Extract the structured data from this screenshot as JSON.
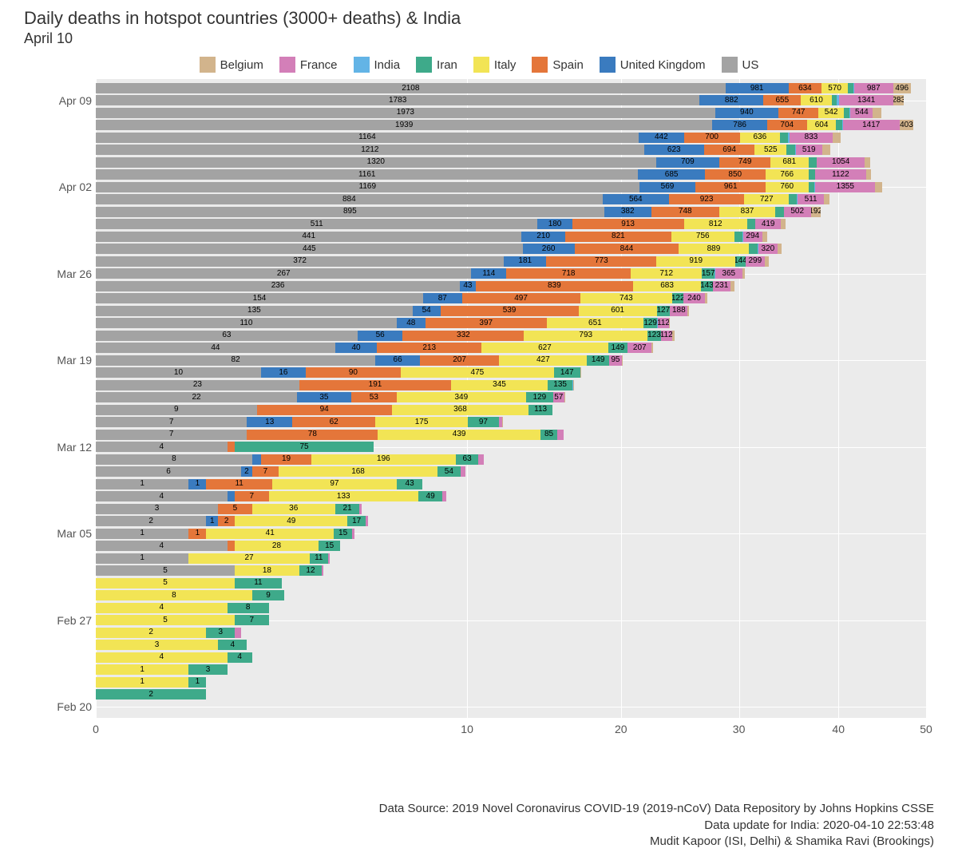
{
  "title": "Daily deaths in hotspot countries (3000+ deaths) & India",
  "subtitle": "April 10",
  "caption_line1": "Data Source: 2019 Novel Coronavirus COVID-19 (2019-nCoV) Data Repository by Johns Hopkins CSSE",
  "caption_line2": "Data update for India: 2020-04-10 22:53:48",
  "caption_line3": "Mudit Kapoor (ISI, Delhi) & Shamika Ravi (Brookings)",
  "chart": {
    "type": "stacked-horizontal-bar",
    "background_color": "#ebebeb",
    "grid_color": "#ffffff",
    "text_color": "#333333",
    "title_fontsize": 22,
    "label_fontsize": 14,
    "seg_label_fontsize": 10,
    "stack_order": [
      "US",
      "United Kingdom",
      "Spain",
      "Italy",
      "Iran",
      "India",
      "France",
      "Belgium"
    ],
    "series_colors": {
      "Belgium": "#d2b48c",
      "France": "#d37fb8",
      "India": "#63b4e6",
      "Iran": "#3eaa8a",
      "Italy": "#f2e455",
      "Spain": "#e4763a",
      "United Kingdom": "#3a7bbf",
      "US": "#a3a3a3"
    },
    "x": {
      "label": null,
      "ticks": [
        0,
        10,
        20,
        30,
        40,
        50
      ],
      "lim": [
        0,
        50
      ],
      "scale": "sqrt"
    },
    "y": {
      "ticks": [
        {
          "label": "Apr 09",
          "row_index": 1
        },
        {
          "label": "Apr 02",
          "row_index": 8
        },
        {
          "label": "Mar 26",
          "row_index": 15
        },
        {
          "label": "Mar 19",
          "row_index": 22
        },
        {
          "label": "Mar 12",
          "row_index": 29
        },
        {
          "label": "Mar 05",
          "row_index": 36
        },
        {
          "label": "Feb 27",
          "row_index": 43
        },
        {
          "label": "Feb 20",
          "row_index": 50
        }
      ]
    },
    "rows": [
      {
        "US": 2108,
        "United Kingdom": 981,
        "Spain": 634,
        "Italy": 570,
        "Iran": 122,
        "India": 20,
        "France": 987,
        "Belgium": 496
      },
      {
        "US": 1783,
        "United Kingdom": 882,
        "Spain": 655,
        "Italy": 610,
        "Iran": 117,
        "India": 48,
        "France": 1341,
        "Belgium": 283
      },
      {
        "US": 1973,
        "United Kingdom": 940,
        "Spain": 747,
        "Italy": 542,
        "Iran": 121,
        "India": 28,
        "France": 544,
        "Belgium": 205
      },
      {
        "US": 1939,
        "United Kingdom": 786,
        "Spain": 704,
        "Italy": 604,
        "Iran": 133,
        "India": 14,
        "France": 1417,
        "Belgium": 403
      },
      {
        "US": 1164,
        "United Kingdom": 442,
        "Spain": 700,
        "Italy": 636,
        "Iran": 136,
        "India": 37,
        "France": 833,
        "Belgium": 185
      },
      {
        "US": 1212,
        "United Kingdom": 623,
        "Spain": 694,
        "Italy": 525,
        "Iran": 151,
        "India": 13,
        "France": 519,
        "Belgium": 164
      },
      {
        "US": 1320,
        "United Kingdom": 709,
        "Spain": 749,
        "Italy": 681,
        "Iran": 158,
        "India": 14,
        "France": 1054,
        "Belgium": 140
      },
      {
        "US": 1161,
        "United Kingdom": 685,
        "Spain": 850,
        "Italy": 766,
        "Iran": 134,
        "France": 1122,
        "Belgium": 132
      },
      {
        "US": 1169,
        "United Kingdom": 569,
        "Spain": 961,
        "Italy": 760,
        "Iran": 124,
        "India": 14,
        "France": 1355,
        "Belgium": 183
      },
      {
        "US": 884,
        "United Kingdom": 564,
        "Spain": 923,
        "Italy": 727,
        "Iran": 138,
        "India": 23,
        "France": 511,
        "Belgium": 123
      },
      {
        "US": 895,
        "United Kingdom": 382,
        "Spain": 748,
        "Italy": 837,
        "Iran": 141,
        "India": 3,
        "France": 502,
        "Belgium": 192
      },
      {
        "US": 511,
        "United Kingdom": 180,
        "Spain": 913,
        "Italy": 812,
        "Iran": 117,
        "India": 5,
        "France": 419,
        "Belgium": 82
      },
      {
        "US": 441,
        "United Kingdom": 210,
        "Spain": 821,
        "Italy": 756,
        "Iran": 123,
        "India": 3,
        "France": 294,
        "Belgium": 78
      },
      {
        "US": 445,
        "United Kingdom": 260,
        "Spain": 844,
        "Italy": 889,
        "Iran": 139,
        "India": 4,
        "France": 320,
        "Belgium": 64
      },
      {
        "US": 372,
        "United Kingdom": 181,
        "Spain": 773,
        "Italy": 919,
        "Iran": 144,
        "France": 299,
        "Belgium": 69
      },
      {
        "US": 267,
        "United Kingdom": 114,
        "Spain": 718,
        "Italy": 712,
        "Iran": 157,
        "India": 8,
        "France": 365,
        "Belgium": 42
      },
      {
        "US": 236,
        "United Kingdom": 43,
        "Spain": 839,
        "Italy": 683,
        "Iran": 143,
        "India": 2,
        "France": 231,
        "Belgium": 56
      },
      {
        "US": 154,
        "United Kingdom": 87,
        "Spain": 497,
        "Italy": 743,
        "Iran": 122,
        "France": 240,
        "Belgium": 34
      },
      {
        "US": 135,
        "United Kingdom": 54,
        "Spain": 539,
        "Italy": 601,
        "Iran": 127,
        "India": 3,
        "France": 188,
        "Belgium": 13
      },
      {
        "US": 110,
        "United Kingdom": 48,
        "Spain": 397,
        "Italy": 651,
        "Iran": 129,
        "India": 3,
        "France": 112,
        "Belgium": 8
      },
      {
        "US": 63,
        "United Kingdom": 56,
        "Spain": 332,
        "Italy": 793,
        "Iran": 123,
        "France": 112,
        "Belgium": 30
      },
      {
        "US": 44,
        "United Kingdom": 40,
        "Spain": 213,
        "Italy": 627,
        "Iran": 149,
        "India": 1,
        "France": 207,
        "Belgium": 16
      },
      {
        "US": 82,
        "United Kingdom": 66,
        "Spain": 207,
        "Italy": 427,
        "Iran": 149,
        "India": 1,
        "France": 95,
        "Belgium": 7
      },
      {
        "US": 10,
        "United Kingdom": 16,
        "Spain": 90,
        "Italy": 475,
        "Iran": 147,
        "Belgium": 4
      },
      {
        "US": 23,
        "Spain": 191,
        "Italy": 345,
        "Iran": 135,
        "India": 1,
        "Belgium": 5
      },
      {
        "US": 22,
        "United Kingdom": 35,
        "Spain": 53,
        "Italy": 349,
        "Iran": 129,
        "France": 57,
        "Belgium": 1
      },
      {
        "US": 9,
        "Spain": 94,
        "Italy": 368,
        "Iran": 113
      },
      {
        "US": 7,
        "United Kingdom": 13,
        "Spain": 62,
        "Italy": 175,
        "Iran": 97,
        "France": 12,
        "Belgium": 1
      },
      {
        "US": 7,
        "Spain": 78,
        "Italy": 439,
        "Iran": 85,
        "India": 1,
        "France": 31
      },
      {
        "US": 4,
        "Spain": 1,
        "Iran": 75
      },
      {
        "US": 8,
        "United Kingdom": 2,
        "Spain": 19,
        "Italy": 196,
        "Iran": 63,
        "France": 15
      },
      {
        "US": 6,
        "United Kingdom": 2,
        "Spain": 7,
        "Italy": 168,
        "Iran": 54,
        "France": 14
      },
      {
        "US": 1,
        "United Kingdom": 1,
        "Spain": 11,
        "Italy": 97,
        "Iran": 43
      },
      {
        "US": 4,
        "United Kingdom": 1,
        "Spain": 7,
        "Italy": 133,
        "Iran": 49,
        "France": 8
      },
      {
        "US": 3,
        "Spain": 5,
        "Italy": 36,
        "Iran": 21,
        "France": 2
      },
      {
        "US": 2,
        "United Kingdom": 1,
        "Spain": 2,
        "Italy": 49,
        "Iran": 17,
        "France": 3
      },
      {
        "US": 1,
        "Spain": 1,
        "Italy": 41,
        "Iran": 15,
        "France": 2
      },
      {
        "US": 4,
        "Spain": 1,
        "Italy": 28,
        "Iran": 15
      },
      {
        "US": 1,
        "Italy": 27,
        "Iran": 11,
        "France": 1
      },
      {
        "US": 5,
        "Italy": 18,
        "Iran": 12,
        "France": 1
      },
      {
        "Italy": 5,
        "Iran": 11
      },
      {
        "Italy": 8,
        "Iran": 9
      },
      {
        "Italy": 4,
        "Iran": 8
      },
      {
        "Italy": 5,
        "Iran": 7
      },
      {
        "Italy": 2,
        "Iran": 3,
        "France": 1
      },
      {
        "Italy": 3,
        "Iran": 4
      },
      {
        "Italy": 4,
        "Iran": 4
      },
      {
        "Italy": 1,
        "Iran": 3
      },
      {
        "Italy": 1,
        "Iran": 1
      },
      {
        "Iran": 2
      }
    ]
  },
  "legend": [
    "Belgium",
    "France",
    "India",
    "Iran",
    "Italy",
    "Spain",
    "United Kingdom",
    "US"
  ]
}
